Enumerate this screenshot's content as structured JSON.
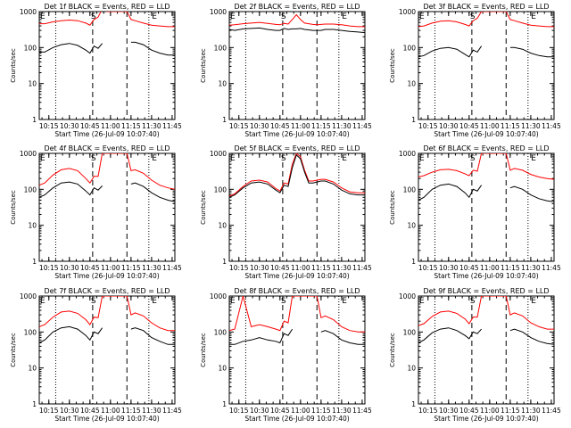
{
  "figure": {
    "xlabel": "Start Time (26-Jul-09 10:07:40)",
    "ylabel": "Counts/sec",
    "x_ticks": [
      "10:15",
      "10:30",
      "10:45",
      "11:00",
      "11:15",
      "11:30",
      "11:45"
    ],
    "y_ticks": [
      "1",
      "10",
      "100",
      "1000"
    ],
    "markers": {
      "E": "E",
      "S": "S"
    },
    "colors": {
      "events": "#000000",
      "lld": "#ff0000"
    }
  },
  "chart_data": [
    {
      "type": "line",
      "title": "Det 1f BLACK = Events, RED = LLD",
      "xlabel": "Start Time (26-Jul-09 10:07:40)",
      "ylabel": "Counts/sec",
      "y_scale": "log",
      "ylim": [
        1,
        1000
      ],
      "x": [
        "10:08",
        "10:12",
        "10:18",
        "10:24",
        "10:30",
        "10:36",
        "10:42",
        "10:45",
        "10:48",
        "10:51",
        "10:54",
        "10:57",
        "11:00",
        "11:03",
        "11:06",
        "11:09",
        "11:12",
        "11:15",
        "11:18",
        "11:24",
        "11:30",
        "11:36",
        "11:42",
        "11:47"
      ],
      "series": [
        {
          "name": "Events",
          "values": [
            75,
            75,
            100,
            120,
            130,
            115,
            85,
            70,
            110,
            95,
            130,
            null,
            null,
            null,
            null,
            null,
            null,
            140,
            140,
            120,
            85,
            70,
            62,
            62
          ]
        },
        {
          "name": "LLD",
          "values": [
            460,
            460,
            520,
            560,
            580,
            560,
            480,
            420,
            600,
            700,
            1200,
            1000,
            1000,
            1000,
            1000,
            1000,
            1000,
            600,
            560,
            480,
            420,
            400,
            380,
            380
          ]
        }
      ]
    },
    {
      "type": "line",
      "title": "Det 2f BLACK = Events, RED = LLD",
      "xlabel": "Start Time (26-Jul-09 10:07:40)",
      "ylabel": "Counts/sec",
      "y_scale": "log",
      "ylim": [
        1,
        1000
      ],
      "x": [
        "10:08",
        "10:12",
        "10:18",
        "10:24",
        "10:30",
        "10:36",
        "10:42",
        "10:45",
        "10:48",
        "10:51",
        "10:54",
        "10:57",
        "11:00",
        "11:03",
        "11:06",
        "11:09",
        "11:12",
        "11:15",
        "11:18",
        "11:24",
        "11:30",
        "11:36",
        "11:42",
        "11:47"
      ],
      "series": [
        {
          "name": "Events",
          "values": [
            320,
            300,
            330,
            340,
            350,
            320,
            300,
            300,
            340,
            320,
            330,
            330,
            340,
            320,
            310,
            300,
            300,
            300,
            320,
            320,
            300,
            280,
            270,
            260
          ]
        },
        {
          "name": "LLD",
          "values": [
            420,
            430,
            460,
            480,
            500,
            470,
            440,
            430,
            470,
            450,
            600,
            820,
            600,
            480,
            460,
            440,
            430,
            440,
            450,
            450,
            430,
            400,
            380,
            380
          ]
        }
      ]
    },
    {
      "type": "line",
      "title": "Det 3f BLACK = Events, RED = LLD",
      "xlabel": "Start Time (26-Jul-09 10:07:40)",
      "ylabel": "Counts/sec",
      "y_scale": "log",
      "ylim": [
        1,
        1000
      ],
      "x": [
        "10:08",
        "10:12",
        "10:18",
        "10:24",
        "10:30",
        "10:36",
        "10:42",
        "10:45",
        "10:48",
        "10:51",
        "10:54",
        "10:57",
        "11:00",
        "11:03",
        "11:06",
        "11:09",
        "11:12",
        "11:15",
        "11:18",
        "11:24",
        "11:30",
        "11:36",
        "11:42",
        "11:47"
      ],
      "series": [
        {
          "name": "Events",
          "values": [
            55,
            60,
            80,
            95,
            100,
            90,
            65,
            55,
            85,
            75,
            110,
            null,
            null,
            null,
            null,
            null,
            null,
            100,
            100,
            90,
            70,
            60,
            55,
            55
          ]
        },
        {
          "name": "LLD",
          "values": [
            380,
            400,
            480,
            540,
            560,
            520,
            440,
            400,
            560,
            650,
            1000,
            1000,
            1000,
            1000,
            1000,
            1000,
            1000,
            600,
            560,
            480,
            420,
            400,
            380,
            380
          ]
        }
      ]
    },
    {
      "type": "line",
      "title": "Det 4f BLACK = Events, RED = LLD",
      "xlabel": "Start Time (26-Jul-09 10:07:40)",
      "ylabel": "Counts/sec",
      "y_scale": "log",
      "ylim": [
        1,
        1000
      ],
      "x": [
        "10:08",
        "10:12",
        "10:18",
        "10:24",
        "10:30",
        "10:36",
        "10:42",
        "10:45",
        "10:48",
        "10:51",
        "10:54",
        "10:57",
        "11:00",
        "11:03",
        "11:06",
        "11:09",
        "11:12",
        "11:15",
        "11:18",
        "11:24",
        "11:30",
        "11:36",
        "11:42",
        "11:47"
      ],
      "series": [
        {
          "name": "Events",
          "values": [
            60,
            70,
            110,
            150,
            160,
            140,
            90,
            70,
            110,
            95,
            125,
            null,
            null,
            null,
            null,
            null,
            null,
            140,
            150,
            120,
            80,
            60,
            50,
            45
          ]
        },
        {
          "name": "LLD",
          "values": [
            130,
            150,
            250,
            350,
            380,
            330,
            200,
            150,
            230,
            230,
            1000,
            1000,
            1000,
            1000,
            1000,
            1000,
            1000,
            330,
            350,
            280,
            180,
            130,
            110,
            100
          ]
        }
      ]
    },
    {
      "type": "line",
      "title": "Det 5f BLACK = Events, RED = LLD",
      "xlabel": "Start Time (26-Jul-09 10:07:40)",
      "ylabel": "Counts/sec",
      "y_scale": "log",
      "ylim": [
        1,
        1000
      ],
      "x": [
        "10:08",
        "10:12",
        "10:18",
        "10:24",
        "10:30",
        "10:36",
        "10:42",
        "10:45",
        "10:48",
        "10:51",
        "10:54",
        "10:57",
        "11:00",
        "11:03",
        "11:06",
        "11:09",
        "11:12",
        "11:15",
        "11:18",
        "11:24",
        "11:30",
        "11:36",
        "11:42",
        "11:47"
      ],
      "series": [
        {
          "name": "Events",
          "values": [
            60,
            70,
            110,
            150,
            160,
            140,
            95,
            80,
            130,
            120,
            400,
            900,
            700,
            300,
            150,
            150,
            160,
            170,
            170,
            140,
            95,
            75,
            70,
            70
          ]
        },
        {
          "name": "LLD",
          "values": [
            65,
            75,
            120,
            170,
            180,
            160,
            105,
            90,
            150,
            140,
            500,
            1000,
            800,
            340,
            170,
            170,
            180,
            190,
            190,
            160,
            110,
            85,
            80,
            80
          ]
        }
      ]
    },
    {
      "type": "line",
      "title": "Det 6f BLACK = Events, RED = LLD",
      "xlabel": "Start Time (26-Jul-09 10:07:40)",
      "ylabel": "Counts/sec",
      "y_scale": "log",
      "ylim": [
        1,
        1000
      ],
      "x": [
        "10:08",
        "10:12",
        "10:18",
        "10:24",
        "10:30",
        "10:36",
        "10:42",
        "10:45",
        "10:48",
        "10:51",
        "10:54",
        "10:57",
        "11:00",
        "11:03",
        "11:06",
        "11:09",
        "11:12",
        "11:15",
        "11:18",
        "11:24",
        "11:30",
        "11:36",
        "11:42",
        "11:47"
      ],
      "series": [
        {
          "name": "Events",
          "values": [
            50,
            60,
            100,
            130,
            140,
            120,
            80,
            60,
            100,
            90,
            130,
            null,
            null,
            null,
            null,
            null,
            null,
            110,
            120,
            100,
            70,
            55,
            48,
            45
          ]
        },
        {
          "name": "LLD",
          "values": [
            220,
            240,
            300,
            350,
            360,
            330,
            270,
            240,
            340,
            320,
            1000,
            1000,
            1000,
            1000,
            1000,
            1000,
            1000,
            340,
            380,
            340,
            260,
            220,
            200,
            190
          ]
        }
      ]
    },
    {
      "type": "line",
      "title": "Det 7f BLACK = Events, RED = LLD",
      "xlabel": "Start Time (26-Jul-09 10:07:40)",
      "ylabel": "Counts/sec",
      "y_scale": "log",
      "ylim": [
        1,
        1000
      ],
      "x": [
        "10:08",
        "10:12",
        "10:18",
        "10:24",
        "10:30",
        "10:36",
        "10:42",
        "10:45",
        "10:48",
        "10:51",
        "10:54",
        "10:57",
        "11:00",
        "11:03",
        "11:06",
        "11:09",
        "11:12",
        "11:15",
        "11:18",
        "11:24",
        "11:30",
        "11:36",
        "11:42",
        "11:47"
      ],
      "series": [
        {
          "name": "Events",
          "values": [
            50,
            60,
            100,
            130,
            140,
            120,
            80,
            60,
            100,
            90,
            130,
            null,
            null,
            null,
            null,
            null,
            null,
            120,
            130,
            110,
            70,
            55,
            45,
            45
          ]
        },
        {
          "name": "LLD",
          "values": [
            140,
            160,
            260,
            360,
            380,
            330,
            220,
            160,
            260,
            250,
            1000,
            1000,
            1000,
            1000,
            1000,
            1000,
            1000,
            300,
            340,
            280,
            180,
            130,
            110,
            110
          ]
        }
      ]
    },
    {
      "type": "line",
      "title": "Det 8f BLACK = Events, RED = LLD",
      "xlabel": "Start Time (26-Jul-09 10:07:40)",
      "ylabel": "Counts/sec",
      "y_scale": "log",
      "ylim": [
        1,
        1000
      ],
      "x": [
        "10:08",
        "10:12",
        "10:18",
        "10:24",
        "10:30",
        "10:36",
        "10:42",
        "10:45",
        "10:48",
        "10:51",
        "10:54",
        "10:57",
        "11:00",
        "11:03",
        "11:06",
        "11:09",
        "11:12",
        "11:15",
        "11:18",
        "11:24",
        "11:30",
        "11:36",
        "11:42",
        "11:47"
      ],
      "series": [
        {
          "name": "Events",
          "values": [
            45,
            45,
            55,
            60,
            70,
            60,
            55,
            50,
            90,
            80,
            120,
            null,
            null,
            null,
            null,
            null,
            null,
            100,
            110,
            90,
            60,
            50,
            45,
            45
          ]
        },
        {
          "name": "LLD",
          "values": [
            110,
            120,
            1000,
            140,
            160,
            140,
            120,
            110,
            200,
            180,
            1000,
            1000,
            1000,
            1000,
            1000,
            1000,
            1000,
            250,
            280,
            220,
            140,
            110,
            100,
            100
          ]
        }
      ]
    },
    {
      "type": "line",
      "title": "Det 9f BLACK = Events, RED = LLD",
      "xlabel": "Start Time (26-Jul-09 10:07:40)",
      "ylabel": "Counts/sec",
      "y_scale": "log",
      "ylim": [
        1,
        1000
      ],
      "x": [
        "10:08",
        "10:12",
        "10:18",
        "10:24",
        "10:30",
        "10:36",
        "10:42",
        "10:45",
        "10:48",
        "10:51",
        "10:54",
        "10:57",
        "11:00",
        "11:03",
        "11:06",
        "11:09",
        "11:12",
        "11:15",
        "11:18",
        "11:24",
        "11:30",
        "11:36",
        "11:42",
        "11:47"
      ],
      "series": [
        {
          "name": "Events",
          "values": [
            50,
            60,
            95,
            120,
            130,
            110,
            80,
            65,
            100,
            90,
            120,
            null,
            null,
            null,
            null,
            null,
            null,
            110,
            120,
            100,
            70,
            55,
            48,
            45
          ]
        },
        {
          "name": "LLD",
          "values": [
            150,
            170,
            270,
            360,
            380,
            330,
            230,
            170,
            260,
            260,
            1000,
            1000,
            1000,
            1000,
            1000,
            1000,
            1000,
            300,
            340,
            280,
            180,
            140,
            120,
            120
          ]
        }
      ]
    }
  ]
}
